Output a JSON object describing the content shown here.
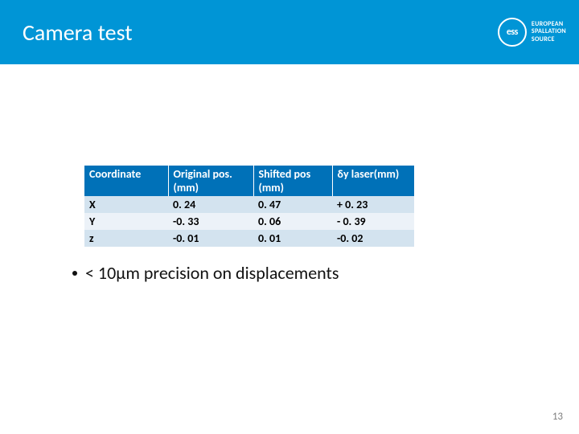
{
  "header": {
    "title": "Camera test",
    "logo_inner": "ess",
    "logo_line1": "EUROPEAN",
    "logo_line2": "SPALLATION",
    "logo_line3": "SOURCE"
  },
  "table": {
    "columns": [
      "Coordinate",
      "Original pos. (mm)",
      "Shifted pos (mm)",
      "δy laser(mm)"
    ],
    "rows": [
      {
        "coord": "X",
        "orig": "0. 24",
        "shift": "0. 47",
        "dy": "+ 0. 23"
      },
      {
        "coord": "Y",
        "orig": "-0. 33",
        "shift": "0. 06",
        "dy": "- 0. 39"
      },
      {
        "coord": "z",
        "orig": "-0. 01",
        "shift": "0. 01",
        "dy": "-0. 02"
      }
    ],
    "header_bg": "#0071b8",
    "row_odd_bg": "#d3e3ef",
    "row_even_bg": "#ecf2f8"
  },
  "bullet": {
    "text": "< 10μm precision on displacements"
  },
  "page_number": "13",
  "colors": {
    "header_bar": "#0095d6",
    "white": "#ffffff"
  }
}
